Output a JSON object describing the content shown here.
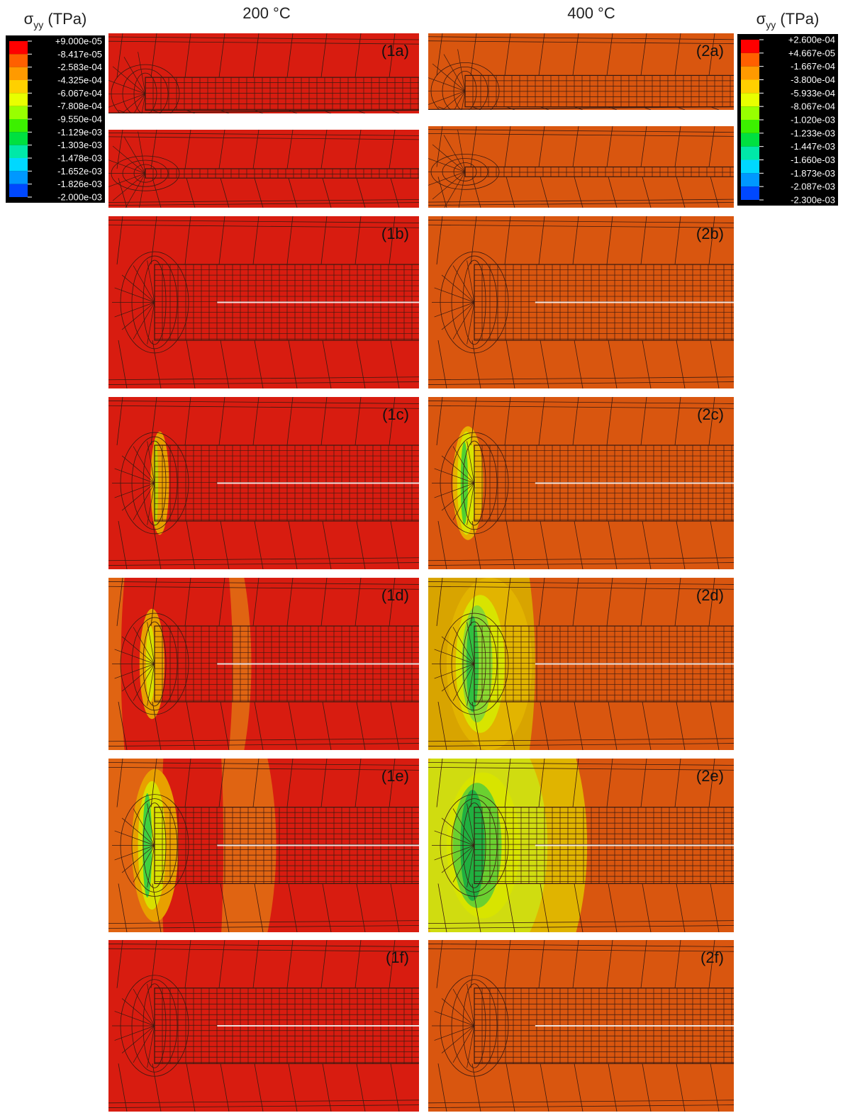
{
  "columns": [
    {
      "title": "200 °C",
      "legend": {
        "symbol": "σ",
        "subscript": "yy",
        "unit": "(TPa)",
        "labels": [
          "+9.000e-05",
          "-8.417e-05",
          "-2.583e-04",
          "-4.325e-04",
          "-6.067e-04",
          "-7.808e-04",
          "-9.550e-04",
          "-1.129e-03",
          "-1.303e-03",
          "-1.478e-03",
          "-1.652e-03",
          "-1.826e-03",
          "-2.000e-03"
        ]
      },
      "panels": [
        "(1a)",
        "(1b)",
        "(1c)",
        "(1d)",
        "(1e)",
        "(1f)"
      ]
    },
    {
      "title": "400 °C",
      "legend": {
        "symbol": "σ",
        "subscript": "yy",
        "unit": "(TPa)",
        "labels": [
          "+2.600e-04",
          "+4.667e-05",
          "-1.667e-04",
          "-3.800e-04",
          "-5.933e-04",
          "-8.067e-04",
          "-1.020e-03",
          "-1.233e-03",
          "-1.447e-03",
          "-1.660e-03",
          "-1.873e-03",
          "-2.087e-03",
          "-2.300e-03"
        ]
      },
      "panels": [
        "(2a)",
        "(2b)",
        "(2c)",
        "(2d)",
        "(2e)",
        "(2f)"
      ]
    }
  ]
}
